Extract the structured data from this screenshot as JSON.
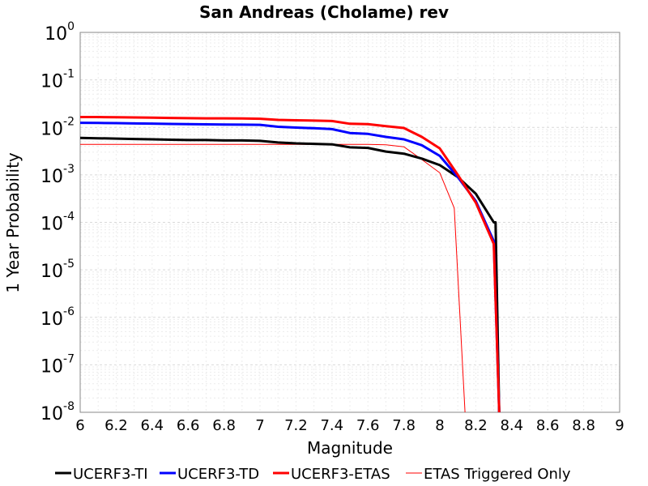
{
  "chart_data": {
    "type": "line",
    "title": "San Andreas (Cholame) rev",
    "xlabel": "Magnitude",
    "ylabel": "1 Year Probability",
    "xlim": [
      6,
      9
    ],
    "ylim": [
      1e-08,
      1
    ],
    "yscale": "log",
    "grid": true,
    "legend_position": "bottom",
    "x_ticks": [
      "6",
      "6.2",
      "6.4",
      "6.6",
      "6.8",
      "7",
      "7.2",
      "7.4",
      "7.6",
      "7.8",
      "8",
      "8.2",
      "8.4",
      "8.6",
      "8.8",
      "9"
    ],
    "y_ticks": [
      {
        "base": "10",
        "exp": "0"
      },
      {
        "base": "10",
        "exp": "-1"
      },
      {
        "base": "10",
        "exp": "-2"
      },
      {
        "base": "10",
        "exp": "-3"
      },
      {
        "base": "10",
        "exp": "-4"
      },
      {
        "base": "10",
        "exp": "-5"
      },
      {
        "base": "10",
        "exp": "-6"
      },
      {
        "base": "10",
        "exp": "-7"
      },
      {
        "base": "10",
        "exp": "-8"
      }
    ],
    "series": [
      {
        "name": "UCERF3-TI",
        "color": "#000000",
        "width": 3,
        "x": [
          6.0,
          6.1,
          6.2,
          6.3,
          6.4,
          6.5,
          6.6,
          6.7,
          6.8,
          6.9,
          7.0,
          7.1,
          7.2,
          7.3,
          7.4,
          7.5,
          7.6,
          7.7,
          7.8,
          7.9,
          8.0,
          8.1,
          8.2,
          8.3,
          8.31,
          8.33
        ],
        "y": [
          0.006,
          0.0059,
          0.0058,
          0.0057,
          0.0056,
          0.0055,
          0.0054,
          0.0054,
          0.0053,
          0.0053,
          0.0052,
          0.0048,
          0.0046,
          0.0045,
          0.0044,
          0.0038,
          0.0037,
          0.0031,
          0.0028,
          0.0022,
          0.0016,
          0.0009,
          0.0004,
          0.0001,
          0.0001,
          1e-08
        ]
      },
      {
        "name": "UCERF3-TD",
        "color": "#0000ff",
        "width": 3,
        "x": [
          6.0,
          6.1,
          6.2,
          6.3,
          6.4,
          6.5,
          6.6,
          6.7,
          6.8,
          6.9,
          7.0,
          7.1,
          7.2,
          7.3,
          7.4,
          7.5,
          7.6,
          7.7,
          7.8,
          7.9,
          8.0,
          8.1,
          8.2,
          8.3,
          8.33
        ],
        "y": [
          0.0125,
          0.0124,
          0.0123,
          0.0121,
          0.012,
          0.0118,
          0.0117,
          0.0116,
          0.0115,
          0.0114,
          0.0113,
          0.0103,
          0.0099,
          0.0096,
          0.0092,
          0.0076,
          0.0073,
          0.0063,
          0.0056,
          0.0042,
          0.0025,
          0.0009,
          0.00028,
          4e-05,
          1e-08
        ]
      },
      {
        "name": "UCERF3-ETAS",
        "color": "#ff0000",
        "width": 3,
        "x": [
          6.0,
          6.1,
          6.2,
          6.3,
          6.4,
          6.5,
          6.6,
          6.7,
          6.8,
          6.9,
          7.0,
          7.1,
          7.2,
          7.3,
          7.4,
          7.5,
          7.6,
          7.7,
          7.8,
          7.9,
          8.0,
          8.1,
          8.2,
          8.3,
          8.33
        ],
        "y": [
          0.0165,
          0.0165,
          0.0163,
          0.0162,
          0.016,
          0.0158,
          0.0156,
          0.0155,
          0.0155,
          0.0154,
          0.0152,
          0.0144,
          0.0141,
          0.0139,
          0.0136,
          0.0119,
          0.0117,
          0.0106,
          0.0097,
          0.0063,
          0.0036,
          0.001,
          0.00026,
          3.5e-05,
          1e-08
        ]
      },
      {
        "name": "ETAS Triggered Only",
        "color": "#ff0000",
        "width": 1,
        "x": [
          6.0,
          6.2,
          6.4,
          6.6,
          6.8,
          7.0,
          7.2,
          7.4,
          7.6,
          7.7,
          7.8,
          7.9,
          8.0,
          8.08,
          8.14
        ],
        "y": [
          0.0044,
          0.0044,
          0.0044,
          0.0044,
          0.0044,
          0.0044,
          0.0044,
          0.0044,
          0.0044,
          0.0043,
          0.0039,
          0.0021,
          0.0011,
          0.0002,
          1e-08
        ]
      }
    ]
  }
}
